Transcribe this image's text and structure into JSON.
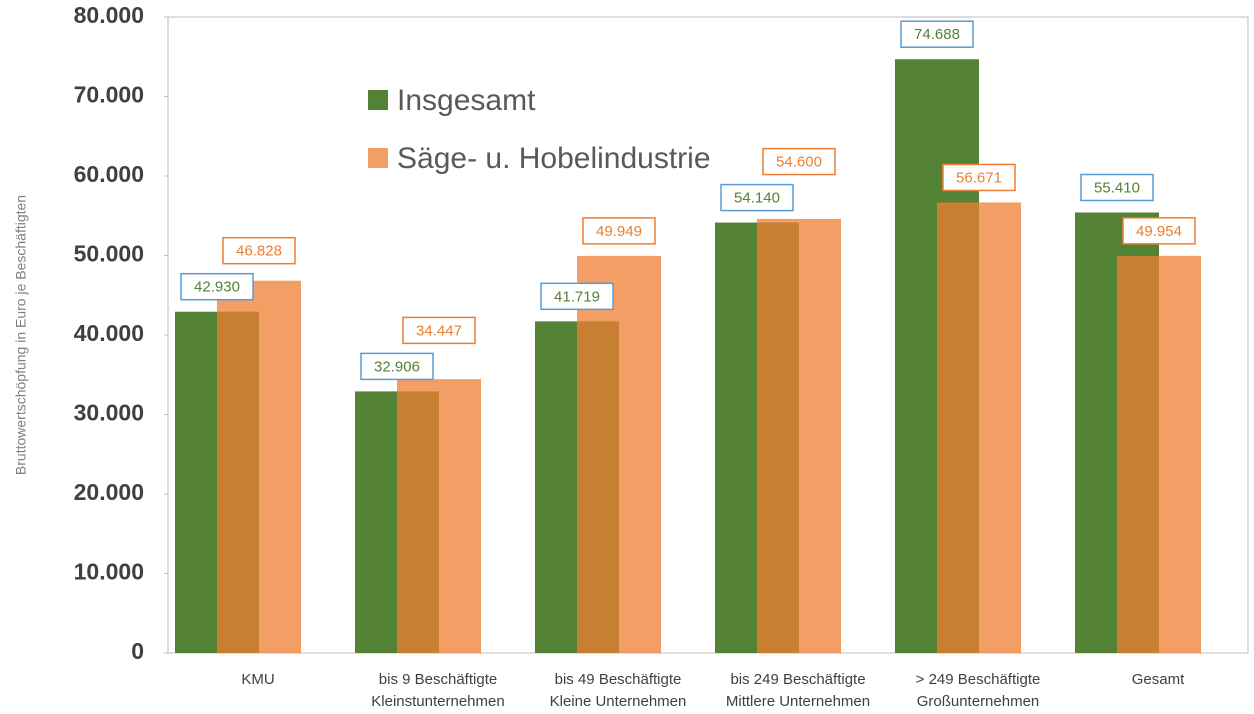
{
  "chart_data": {
    "type": "bar",
    "y_label": "Bruttowertschöpfung in Euro je Beschäftigten",
    "categories": [
      [
        "KMU"
      ],
      [
        "bis 9 Beschäftigte",
        "Kleinstunternehmen"
      ],
      [
        "bis 49 Beschäftigte",
        "Kleine Unternehmen"
      ],
      [
        "bis 249 Beschäftigte",
        "Mittlere Unternehmen"
      ],
      [
        "> 249 Beschäftigte",
        "Großunternehmen"
      ],
      [
        "Gesamt"
      ]
    ],
    "series": [
      {
        "name": "Insgesamt",
        "color": "#548235",
        "label_border": "#5b9bd5",
        "values": [
          42930,
          32906,
          41719,
          54140,
          74688,
          55410
        ],
        "value_labels": [
          "42.930",
          "32.906",
          "41.719",
          "54.140",
          "74.688",
          "55.410"
        ]
      },
      {
        "name": "Säge- u. Hobelindustrie",
        "color": "#ed7d31",
        "label_border": "#ed7d31",
        "values": [
          46828,
          34447,
          49949,
          54600,
          56671,
          49954
        ],
        "value_labels": [
          "46.828",
          "34.447",
          "49.949",
          "54.600",
          "56.671",
          "49.954"
        ]
      }
    ],
    "ylim": [
      0,
      80000
    ],
    "yticks": [
      0,
      {
        "value": 10000,
        "label": "10.000"
      },
      {
        "value": 20000,
        "label": "20.000"
      },
      {
        "value": 30000,
        "label": "30.000"
      },
      {
        "value": 40000,
        "label": "40.000"
      },
      {
        "value": 50000,
        "label": "50.000"
      },
      {
        "value": 60000,
        "label": "60.000"
      },
      {
        "value": 70000,
        "label": "70.000"
      },
      {
        "value": 80000,
        "label": "80.000"
      }
    ],
    "legend": "inside-top-left"
  }
}
